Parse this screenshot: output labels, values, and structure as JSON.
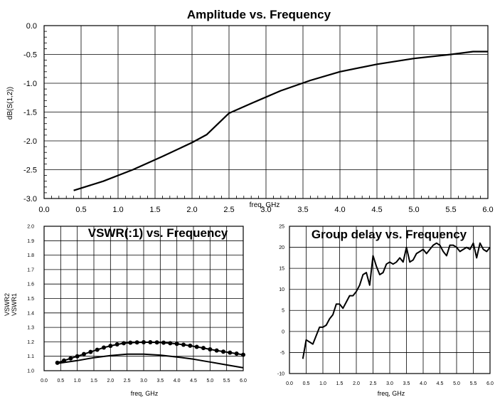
{
  "chart_data": [
    {
      "id": "amp",
      "type": "line",
      "title": "Amplitude vs. Frequency",
      "xlabel": "freq, GHz",
      "ylabel": "dB(S(1,2))",
      "xlim": [
        0,
        6
      ],
      "ylim": [
        -3,
        0
      ],
      "xticks": [
        "0.0",
        "0.5",
        "1.0",
        "1.5",
        "2.0",
        "2.5",
        "3.0",
        "3.5",
        "4.0",
        "4.5",
        "5.0",
        "5.5",
        "6.0"
      ],
      "yticks": [
        "0.0",
        "-0.5",
        "-1.0",
        "-1.5",
        "-2.0",
        "-2.5",
        "-3.0"
      ],
      "grid": true,
      "series": [
        {
          "color": "#000000",
          "x": [
            0.4,
            0.8,
            1.2,
            1.6,
            2.0,
            2.2,
            2.5,
            2.8,
            3.2,
            3.6,
            4.0,
            4.5,
            5.0,
            5.5,
            5.8,
            6.0
          ],
          "y": [
            -2.86,
            -2.7,
            -2.5,
            -2.27,
            -2.03,
            -1.89,
            -1.52,
            -1.35,
            -1.13,
            -0.95,
            -0.8,
            -0.67,
            -0.57,
            -0.5,
            -0.45,
            -0.45
          ]
        }
      ]
    },
    {
      "id": "vswr",
      "type": "line",
      "title": "VSWR(:1) vs. Frequency",
      "xlabel": "freq, GHz",
      "ylabel": "VSWR2\nVSWR1",
      "ylabel_lines": [
        "VSWR2",
        "VSWR1"
      ],
      "xlim": [
        0,
        6
      ],
      "ylim": [
        1.0,
        2.0
      ],
      "xticks": [
        "0.0",
        "0.5",
        "1.0",
        "1.5",
        "2.0",
        "2.5",
        "3.0",
        "3.5",
        "4.0",
        "4.5",
        "5.0",
        "5.5",
        "6.0"
      ],
      "yticks": [
        "2.0",
        "1.9",
        "1.8",
        "1.7",
        "1.6",
        "1.5",
        "1.4",
        "1.3",
        "1.2",
        "1.1",
        "1.0"
      ],
      "grid": true,
      "series": [
        {
          "color": "#000000",
          "markers": true,
          "x": [
            0.4,
            0.6,
            0.8,
            1.0,
            1.2,
            1.4,
            1.6,
            1.8,
            2.0,
            2.2,
            2.4,
            2.6,
            2.8,
            3.0,
            3.2,
            3.4,
            3.6,
            3.8,
            4.0,
            4.2,
            4.4,
            4.6,
            4.8,
            5.0,
            5.2,
            5.4,
            5.6,
            5.8,
            6.0
          ],
          "y": [
            1.055,
            1.07,
            1.085,
            1.1,
            1.115,
            1.13,
            1.145,
            1.16,
            1.172,
            1.182,
            1.19,
            1.194,
            1.196,
            1.197,
            1.197,
            1.196,
            1.194,
            1.19,
            1.186,
            1.18,
            1.173,
            1.165,
            1.157,
            1.148,
            1.14,
            1.132,
            1.125,
            1.118,
            1.11
          ]
        },
        {
          "color": "#000000",
          "markers": false,
          "x": [
            0.4,
            1.0,
            1.5,
            2.0,
            2.5,
            3.0,
            3.5,
            4.0,
            4.5,
            5.0,
            5.5,
            6.0
          ],
          "y": [
            1.05,
            1.07,
            1.09,
            1.105,
            1.115,
            1.115,
            1.108,
            1.095,
            1.08,
            1.06,
            1.04,
            1.02
          ]
        }
      ]
    },
    {
      "id": "gd",
      "type": "line",
      "title": "Group delay vs. Frequency",
      "xlabel": "freq, GHz",
      "ylabel": "",
      "xlim": [
        0,
        6
      ],
      "ylim": [
        -10,
        25
      ],
      "xticks": [
        "0.0",
        "0.5",
        "1.0",
        "1.5",
        "2.0",
        "2.5",
        "3.0",
        "3.5",
        "4.0",
        "4.5",
        "5.0",
        "5.5",
        "6.0"
      ],
      "yticks": [
        "25",
        "20",
        "15",
        "10",
        "5",
        "0",
        "-5",
        "-10"
      ],
      "grid": true,
      "series": [
        {
          "color": "#000000",
          "x": [
            0.4,
            0.5,
            0.6,
            0.7,
            0.8,
            0.9,
            1.0,
            1.1,
            1.2,
            1.3,
            1.4,
            1.5,
            1.6,
            1.7,
            1.8,
            1.9,
            2.0,
            2.1,
            2.2,
            2.3,
            2.4,
            2.5,
            2.6,
            2.7,
            2.8,
            2.9,
            3.0,
            3.1,
            3.2,
            3.3,
            3.4,
            3.5,
            3.6,
            3.7,
            3.8,
            3.9,
            4.0,
            4.1,
            4.2,
            4.3,
            4.4,
            4.5,
            4.6,
            4.7,
            4.8,
            4.9,
            5.0,
            5.1,
            5.2,
            5.3,
            5.4,
            5.5,
            5.6,
            5.7,
            5.8,
            5.9,
            6.0
          ],
          "y": [
            -6.5,
            -2,
            -2.5,
            -3,
            -1,
            1,
            1,
            1.5,
            3,
            4,
            6.5,
            6.5,
            5.5,
            7,
            8.5,
            8.5,
            9.5,
            11,
            13.5,
            14,
            11,
            18,
            15.5,
            13.5,
            14,
            16,
            16.5,
            16,
            16.5,
            17.5,
            16.5,
            20,
            16.5,
            17,
            18.5,
            19,
            19.5,
            18.5,
            19.5,
            20.5,
            21,
            20.5,
            19,
            18,
            20.5,
            20.5,
            20,
            19,
            19.5,
            20,
            19.5,
            21,
            17.5,
            21,
            19.5,
            19,
            20
          ]
        }
      ]
    }
  ]
}
